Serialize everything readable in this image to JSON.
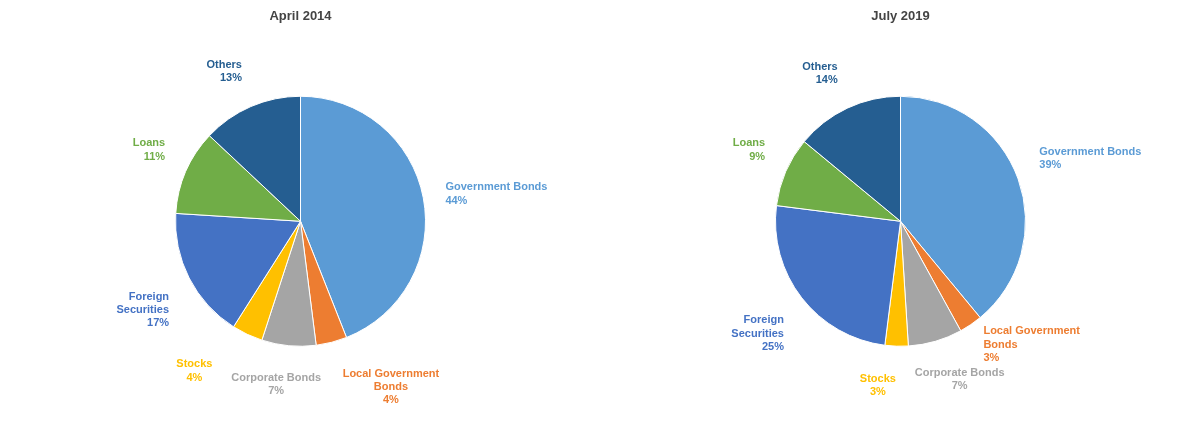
{
  "chart_data": [
    {
      "type": "pie",
      "title": "April 2014",
      "categories": [
        "Government Bonds",
        "Local Government Bonds",
        "Corporate Bonds",
        "Stocks",
        "Foreign Securities",
        "Loans",
        "Others"
      ],
      "values": [
        44,
        4,
        7,
        4,
        17,
        11,
        13
      ],
      "value_labels": [
        "44%",
        "4%",
        "7%",
        "4%",
        "17%",
        "11%",
        "13%"
      ],
      "colors": [
        "#5b9bd5",
        "#ed7d31",
        "#a5a5a5",
        "#ffc000",
        "#4472c4",
        "#70ad47",
        "#255e91"
      ]
    },
    {
      "type": "pie",
      "title": "July 2019",
      "categories": [
        "Government Bonds",
        "Local Government Bonds",
        "Corporate Bonds",
        "Stocks",
        "Foreign Securities",
        "Loans",
        "Others"
      ],
      "values": [
        39,
        3,
        7,
        3,
        25,
        9,
        14
      ],
      "value_labels": [
        "39%",
        "3%",
        "7%",
        "3%",
        "25%",
        "9%",
        "14%"
      ],
      "colors": [
        "#5b9bd5",
        "#ed7d31",
        "#a5a5a5",
        "#ffc000",
        "#4472c4",
        "#70ad47",
        "#255e91"
      ]
    }
  ]
}
